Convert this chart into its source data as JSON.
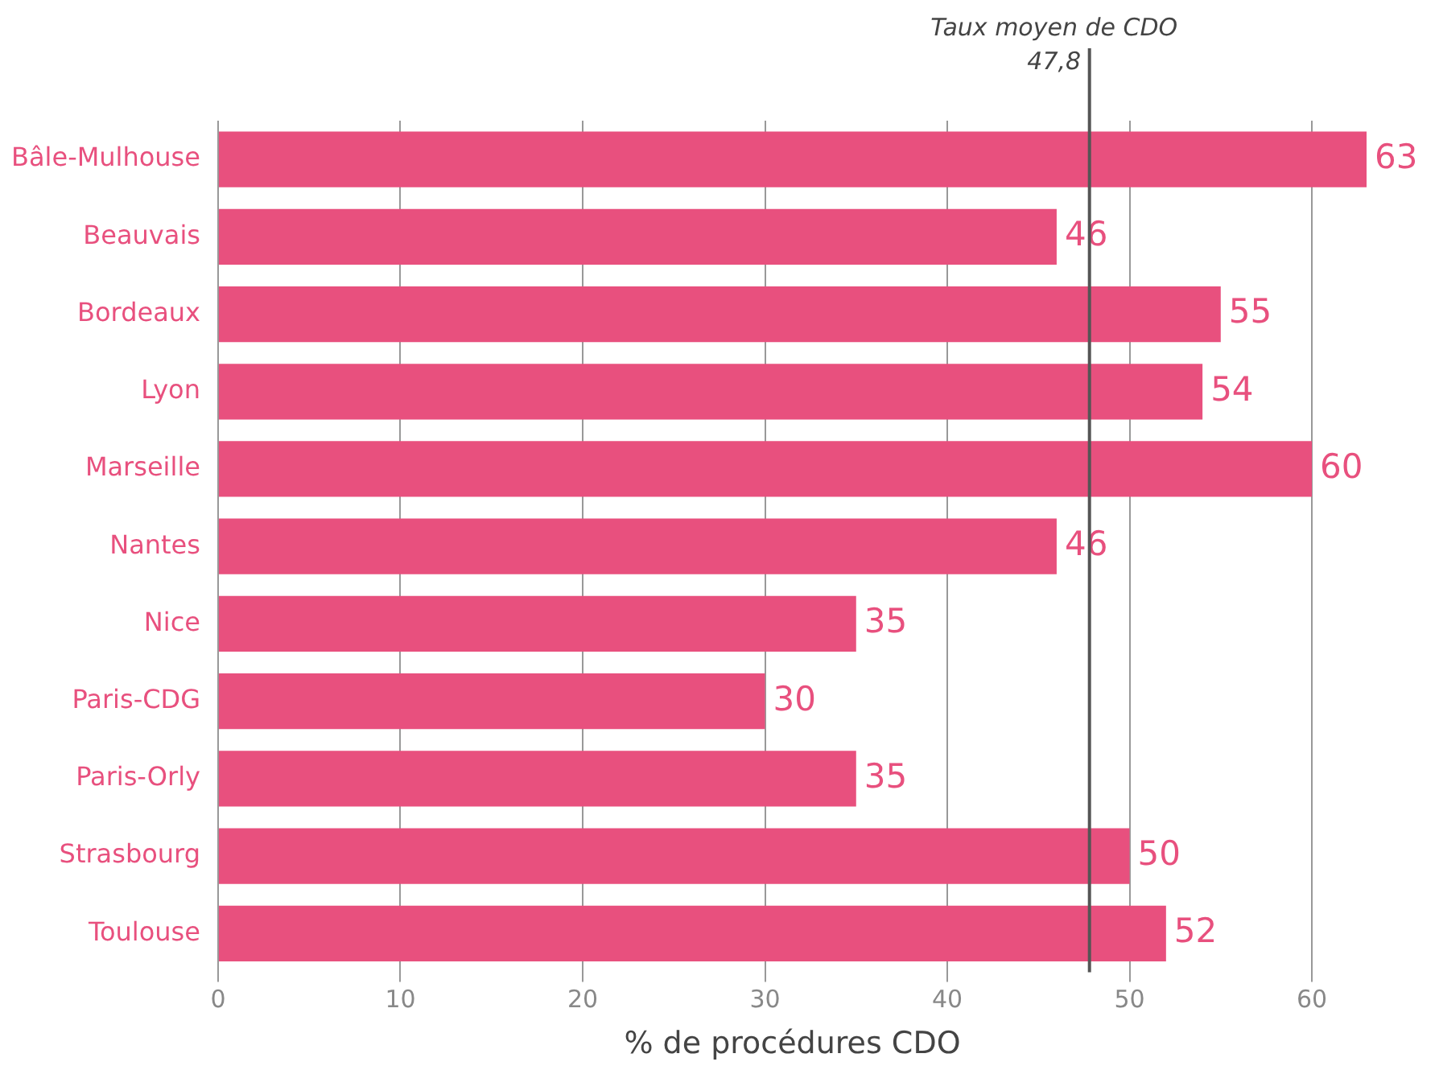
{
  "chart_data": {
    "type": "bar",
    "orientation": "horizontal",
    "xlabel": "% de procédures CDO",
    "categories": [
      "Bâle-Mulhouse",
      "Beauvais",
      "Bordeaux",
      "Lyon",
      "Marseille",
      "Nantes",
      "Nice",
      "Paris-CDG",
      "Paris-Orly",
      "Strasbourg",
      "Toulouse"
    ],
    "values": [
      63,
      46,
      55,
      54,
      60,
      46,
      35,
      30,
      35,
      50,
      52
    ],
    "color": "#e8507e",
    "data_labels": true,
    "grid": "x",
    "legend": false,
    "xlim": [
      0,
      63
    ],
    "xticks": [
      0,
      10,
      20,
      30,
      40,
      50,
      60
    ],
    "ref_lines": [
      {
        "axis": "x",
        "value": 47.8,
        "label": "Taux moyen de CDO\n47,8",
        "color": "#555555"
      }
    ]
  }
}
